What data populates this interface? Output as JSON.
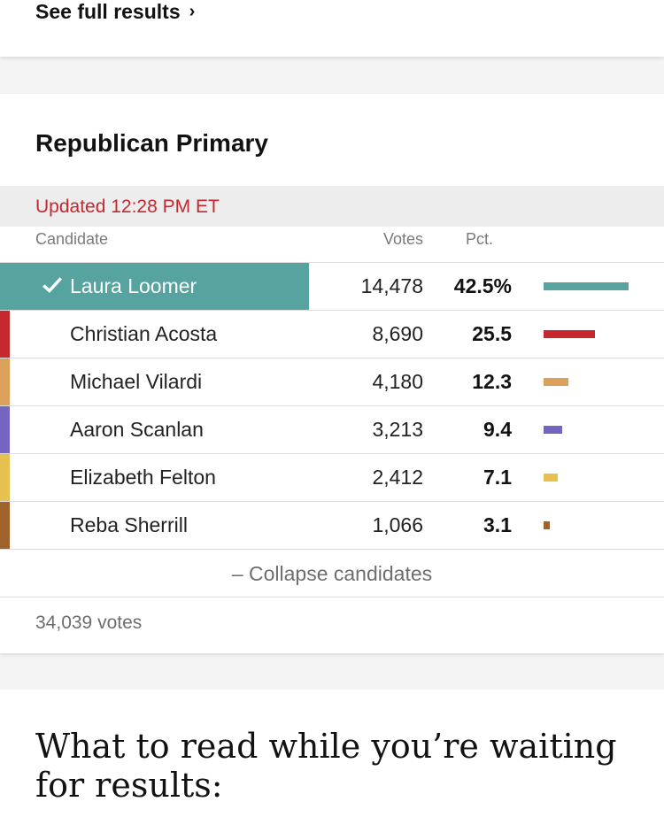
{
  "top": {
    "see_full_label": "See full results",
    "chevron": "›"
  },
  "race": {
    "title": "Republican Primary",
    "updated": "Updated 12:28 PM ET",
    "headers": {
      "candidate": "Candidate",
      "votes": "Votes",
      "pct": "Pct."
    },
    "candidates": [
      {
        "name": "Laura Loomer",
        "votes": "14,478",
        "pct": "42.5%",
        "pct_value": 42.5,
        "color": "#57a39f",
        "winner": true
      },
      {
        "name": "Christian Acosta",
        "votes": "8,690",
        "pct": "25.5",
        "pct_value": 25.5,
        "color": "#c5282f",
        "winner": false
      },
      {
        "name": "Michael Vilardi",
        "votes": "4,180",
        "pct": "12.3",
        "pct_value": 12.3,
        "color": "#dba15a",
        "winner": false
      },
      {
        "name": "Aaron Scanlan",
        "votes": "3,213",
        "pct": "9.4",
        "pct_value": 9.4,
        "color": "#7665c0",
        "winner": false
      },
      {
        "name": "Elizabeth Felton",
        "votes": "2,412",
        "pct": "7.1",
        "pct_value": 7.1,
        "color": "#e6c14f",
        "winner": false
      },
      {
        "name": "Reba Sherrill",
        "votes": "1,066",
        "pct": "3.1",
        "pct_value": 3.1,
        "color": "#a0622b",
        "winner": false
      }
    ],
    "collapse_label": "– Collapse candidates",
    "total_votes": "34,039 votes"
  },
  "reading": {
    "heading": "What to read while you’re waiting for results:"
  }
}
